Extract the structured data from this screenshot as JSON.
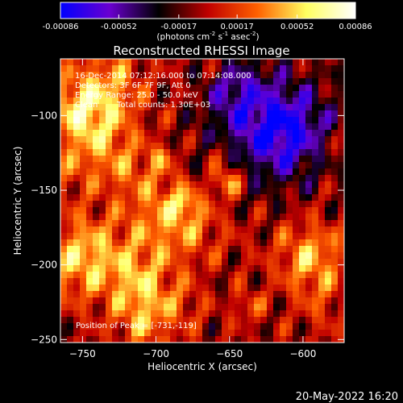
{
  "colorbar": {
    "tick_labels": [
      "-0.00086",
      "-0.00052",
      "-0.00017",
      "0.00017",
      "0.00052",
      "0.00086"
    ],
    "tick_values": [
      -0.00086,
      -0.00052,
      -0.00017,
      0.00017,
      0.00052,
      0.00086
    ],
    "range": [
      -0.00086,
      0.00086
    ],
    "unit_main": "(photons cm",
    "unit_exp1": "-2",
    "unit_mid": " s",
    "unit_exp2": "-1",
    "unit_mid2": " asec",
    "unit_exp3": "-2",
    "unit_end": ")",
    "colors": [
      "#0000ff",
      "#6a00d0",
      "#000000",
      "#c00000",
      "#ff6000",
      "#ffff60",
      "#ffffff"
    ]
  },
  "chart_data": {
    "type": "heatmap",
    "title": "Reconstructed RHESSI Image",
    "xlabel": "Heliocentric X (arcsec)",
    "ylabel": "Heliocentric Y (arcsec)",
    "xlim": [
      -765,
      -572
    ],
    "ylim": [
      -252,
      -62
    ],
    "x_ticks": [
      -750,
      -700,
      -650,
      -600
    ],
    "y_ticks": [
      -100,
      -150,
      -200,
      -250
    ],
    "grid": false,
    "annotations": {
      "line1": "16-Dec-2014 07:12:16.000 to 07:14:08.000",
      "line2": "Detectors: 3F 6F 7F 9F, Att 0",
      "line3": "Energy Range: 25.0 - 50.0 keV",
      "line4_a": "Clean",
      "line4_b": "Total counts: 1.30E+03",
      "peak": "Position of Peak = [-731,-119]"
    },
    "peak": [
      -731,
      -119
    ]
  },
  "timestamp": "20-May-2022 16:20"
}
